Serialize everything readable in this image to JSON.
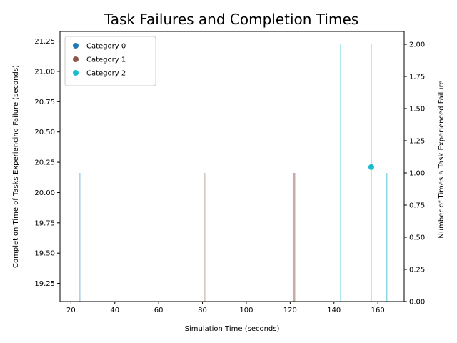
{
  "chart_data": {
    "type": "bar+scatter",
    "title": "Task Failures and Completion Times",
    "xlabel": "Simulation Time (seconds)",
    "ylabel_left": "Completion Time of Tasks Experiencing Failure (seconds)",
    "ylabel_right": "Number of Times a Task Experienced Failure",
    "xlim": [
      15,
      172
    ],
    "ylim_left": [
      19.1,
      21.33
    ],
    "ylim_right": [
      0,
      2.1
    ],
    "x_ticks": [
      20,
      40,
      60,
      80,
      100,
      120,
      140,
      160
    ],
    "y_left_ticks": [
      19.25,
      19.5,
      19.75,
      20.0,
      20.25,
      20.5,
      20.75,
      21.0,
      21.25
    ],
    "y_left_tick_labels": [
      "19.25",
      "19.50",
      "19.75",
      "20.00",
      "20.25",
      "20.50",
      "20.75",
      "21.00",
      "21.25"
    ],
    "y_right_ticks": [
      0.0,
      0.25,
      0.5,
      0.75,
      1.0,
      1.25,
      1.5,
      1.75,
      2.0
    ],
    "y_right_tick_labels": [
      "0.00",
      "0.25",
      "0.50",
      "0.75",
      "1.00",
      "1.25",
      "1.50",
      "1.75",
      "2.00"
    ],
    "legend": {
      "placement": "top-left",
      "entries": [
        {
          "label": "Category 0",
          "color": "#1f77b4"
        },
        {
          "label": "Category 1",
          "color": "#8c564b"
        },
        {
          "label": "Category 2",
          "color": "#17becf"
        }
      ]
    },
    "bars": [
      {
        "x": 24,
        "count": 1,
        "color": "#a6cee3"
      },
      {
        "x": 81,
        "count": 1,
        "color": "#d2c1b9"
      },
      {
        "x": 121.5,
        "count": 1,
        "color": "#c4a59c"
      },
      {
        "x": 122,
        "count": 1,
        "color": "#c4a59c"
      },
      {
        "x": 143,
        "count": 2,
        "color": "#a8e8ec"
      },
      {
        "x": 157,
        "count": 2,
        "color": "#a8e8ec"
      },
      {
        "x": 164,
        "count": 1,
        "color": "#7fd5de"
      }
    ],
    "points": [
      {
        "x": 157,
        "y": 20.21,
        "category": "Category 2",
        "color": "#17becf"
      }
    ]
  }
}
